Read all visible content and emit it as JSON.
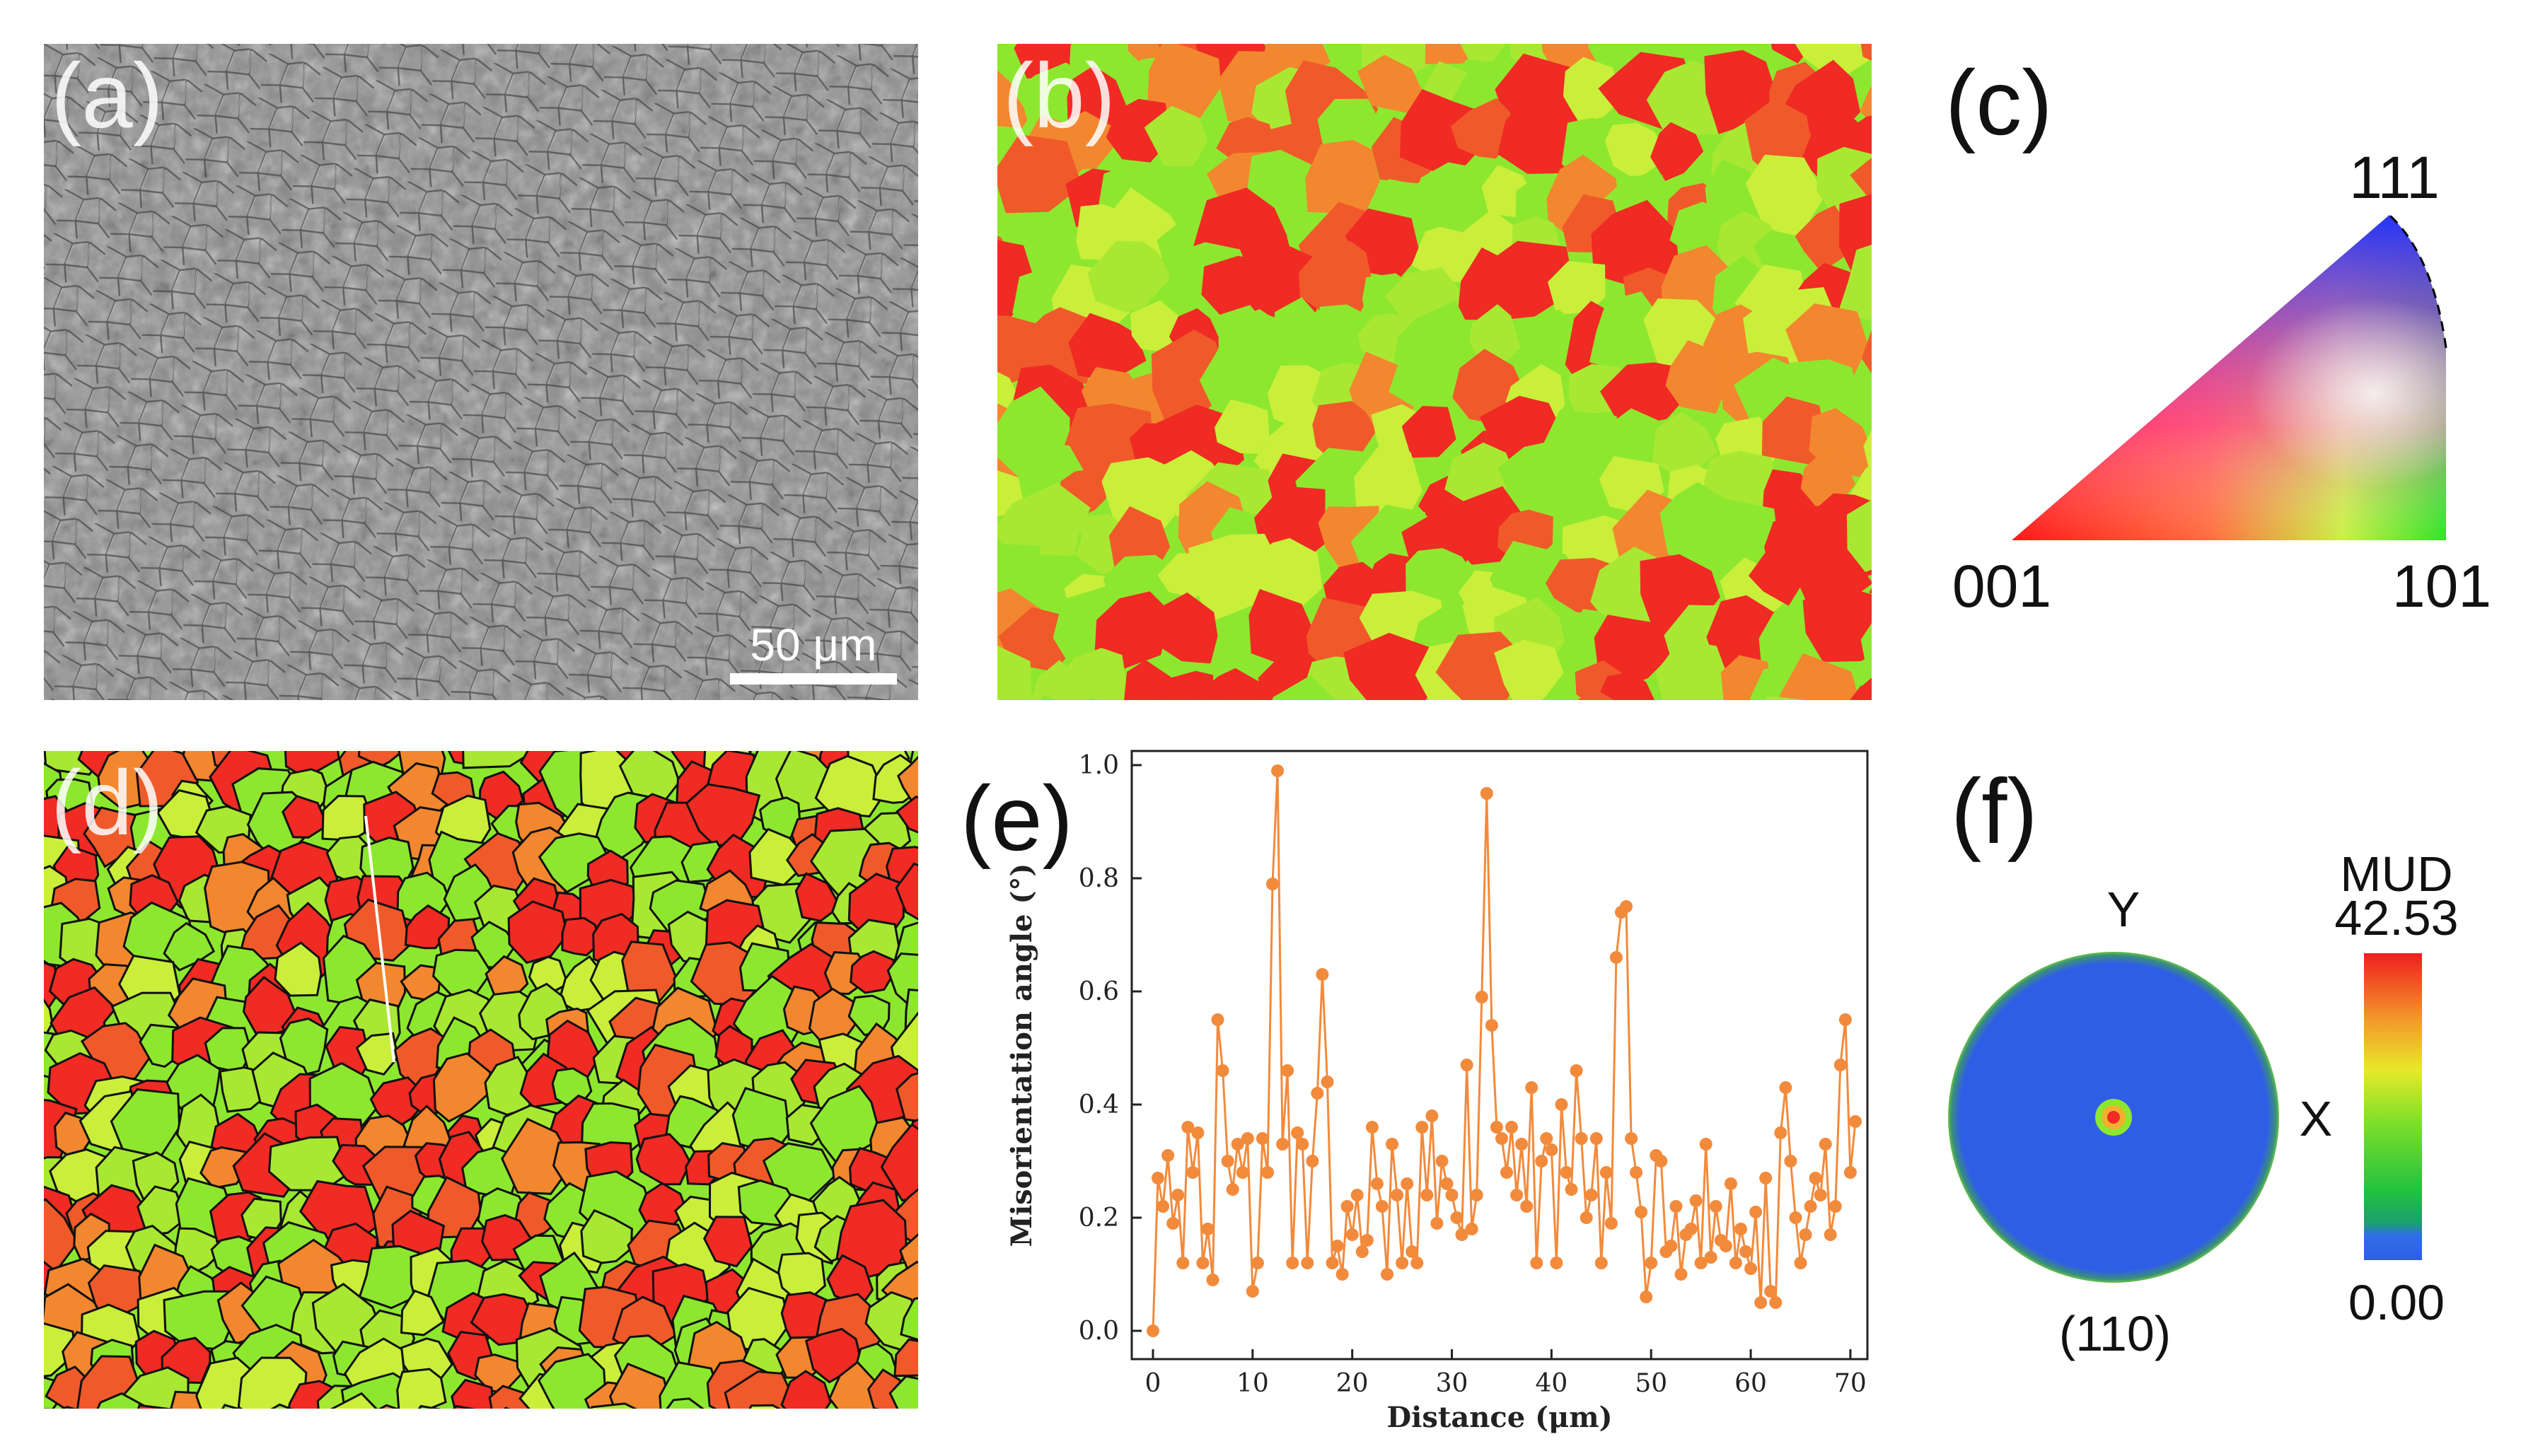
{
  "figure": {
    "panels": {
      "a": {
        "label": "(a)",
        "scale_bar": "50 μm"
      },
      "b": {
        "label": "(b)"
      },
      "c": {
        "label": "(c)",
        "corner_111": "111",
        "corner_001": "001",
        "corner_101": "101"
      },
      "d": {
        "label": "(d)"
      },
      "e": {
        "label": "(e)"
      },
      "f": {
        "label": "(f)",
        "axis_y": "Y",
        "axis_x": "X",
        "plane": "(110)",
        "legend_title": "MUD",
        "legend_max": "42.53",
        "legend_min": "0.00"
      }
    }
  },
  "colors": {
    "red": "#ef2b24",
    "orange": "#f2872f",
    "lime": "#8ee72f",
    "yellow_green": "#c9ef3b",
    "blue": "#2f5ee6",
    "chart_line": "#f28a3c"
  },
  "chart_data": {
    "type": "line",
    "title": "",
    "xlabel": "Distance (μm)",
    "ylabel": "Misorientation angle (°)",
    "xlim": [
      0,
      71
    ],
    "ylim": [
      0,
      1.0
    ],
    "xticks": [
      "0",
      "10",
      "20",
      "30",
      "40",
      "50",
      "60",
      "70"
    ],
    "yticks": [
      "0.0",
      "0.2",
      "0.4",
      "0.6",
      "0.8",
      "1.0"
    ],
    "series": [
      {
        "name": "Misorientation",
        "x": [
          0,
          0.5,
          1,
          1.5,
          2,
          2.5,
          3,
          3.5,
          4,
          4.5,
          5,
          5.5,
          6,
          6.5,
          7,
          7.5,
          8,
          8.5,
          9,
          9.5,
          10,
          10.5,
          11,
          11.5,
          12,
          12.5,
          13,
          13.5,
          14,
          14.5,
          15,
          15.5,
          16,
          16.5,
          17,
          17.5,
          18,
          18.5,
          19,
          19.5,
          20,
          20.5,
          21,
          21.5,
          22,
          22.5,
          23,
          23.5,
          24,
          24.5,
          25,
          25.5,
          26,
          26.5,
          27,
          27.5,
          28,
          28.5,
          29,
          29.5,
          30,
          30.5,
          31,
          31.5,
          32,
          32.5,
          33,
          33.5,
          34,
          34.5,
          35,
          35.5,
          36,
          36.5,
          37,
          37.5,
          38,
          38.5,
          39,
          39.5,
          40,
          40.5,
          41,
          41.5,
          42,
          42.5,
          43,
          43.5,
          44,
          44.5,
          45,
          45.5,
          46,
          46.5,
          47,
          47.5,
          48,
          48.5,
          49,
          49.5,
          50,
          50.5,
          51,
          51.5,
          52,
          52.5,
          53,
          53.5,
          54,
          54.5,
          55,
          55.5,
          56,
          56.5,
          57,
          57.5,
          58,
          58.5,
          59,
          59.5,
          60,
          60.5,
          61,
          61.5,
          62,
          62.5,
          63,
          63.5,
          64,
          64.5,
          65,
          65.5,
          66,
          66.5,
          67,
          67.5,
          68,
          68.5,
          69,
          69.5,
          70,
          70.5
        ],
        "values": [
          0.0,
          0.27,
          0.22,
          0.31,
          0.19,
          0.24,
          0.12,
          0.36,
          0.28,
          0.35,
          0.12,
          0.18,
          0.09,
          0.55,
          0.46,
          0.3,
          0.25,
          0.33,
          0.28,
          0.34,
          0.07,
          0.12,
          0.34,
          0.28,
          0.79,
          0.99,
          0.33,
          0.46,
          0.12,
          0.35,
          0.33,
          0.12,
          0.3,
          0.42,
          0.63,
          0.44,
          0.12,
          0.15,
          0.1,
          0.22,
          0.17,
          0.24,
          0.14,
          0.16,
          0.36,
          0.26,
          0.22,
          0.1,
          0.33,
          0.24,
          0.12,
          0.26,
          0.14,
          0.12,
          0.36,
          0.24,
          0.38,
          0.19,
          0.3,
          0.26,
          0.24,
          0.2,
          0.17,
          0.47,
          0.18,
          0.24,
          0.59,
          0.95,
          0.54,
          0.36,
          0.34,
          0.28,
          0.36,
          0.24,
          0.33,
          0.22,
          0.43,
          0.12,
          0.3,
          0.34,
          0.32,
          0.12,
          0.4,
          0.28,
          0.25,
          0.46,
          0.34,
          0.2,
          0.24,
          0.34,
          0.12,
          0.28,
          0.19,
          0.66,
          0.74,
          0.75,
          0.34,
          0.28,
          0.21,
          0.06,
          0.12,
          0.31,
          0.3,
          0.14,
          0.15,
          0.22,
          0.1,
          0.17,
          0.18,
          0.23,
          0.12,
          0.33,
          0.13,
          0.22,
          0.16,
          0.15,
          0.26,
          0.12,
          0.18,
          0.14,
          0.11,
          0.21,
          0.05,
          0.27,
          0.07,
          0.05,
          0.35,
          0.43,
          0.3,
          0.2,
          0.12,
          0.17,
          0.22,
          0.27,
          0.24,
          0.33,
          0.17,
          0.22,
          0.47,
          0.55,
          0.28,
          0.37
        ]
      }
    ]
  }
}
